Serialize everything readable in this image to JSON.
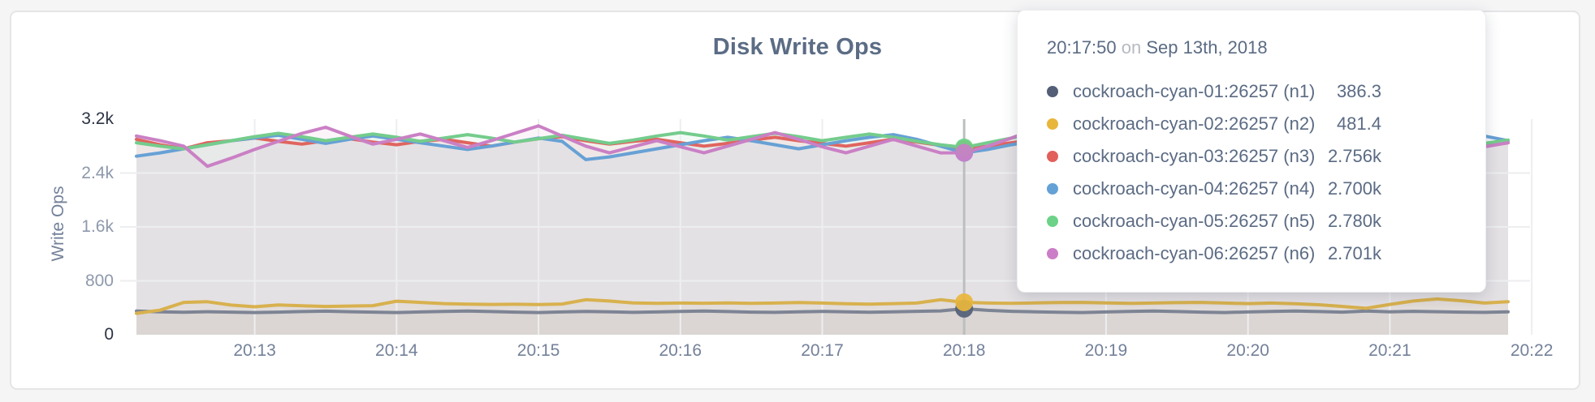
{
  "header": {
    "title": "Disk Write Ops"
  },
  "axes": {
    "y_label": "Write Ops"
  },
  "tooltip": {
    "time": "20:17:50",
    "on_word": "on",
    "date": "Sep 13th, 2018",
    "rows": [
      {
        "label": "cockroach-cyan-01:26257 (n1)",
        "value": "386.3",
        "color": "#535f76"
      },
      {
        "label": "cockroach-cyan-02:26257 (n2)",
        "value": "481.4",
        "color": "#e9b63c"
      },
      {
        "label": "cockroach-cyan-03:26257 (n3)",
        "value": "2.756k",
        "color": "#e2605c"
      },
      {
        "label": "cockroach-cyan-04:26257 (n4)",
        "value": "2.700k",
        "color": "#64a1d6"
      },
      {
        "label": "cockroach-cyan-05:26257 (n5)",
        "value": "2.780k",
        "color": "#6bd287"
      },
      {
        "label": "cockroach-cyan-06:26257 (n6)",
        "value": "2.701k",
        "color": "#cb7ec7"
      }
    ]
  },
  "chart_data": {
    "type": "line",
    "title": "Disk Write Ops",
    "ylabel": "Write Ops",
    "ylim": [
      0,
      3200
    ],
    "grid": true,
    "y_ticks": [
      {
        "value": 0,
        "label": "0",
        "strong": true
      },
      {
        "value": 800,
        "label": "800",
        "strong": false
      },
      {
        "value": 1600,
        "label": "1.6k",
        "strong": false
      },
      {
        "value": 2400,
        "label": "2.4k",
        "strong": false
      },
      {
        "value": 3200,
        "label": "3.2k",
        "strong": true
      }
    ],
    "x_ticks": [
      {
        "sec": 50,
        "label": "20:13"
      },
      {
        "sec": 110,
        "label": "20:14"
      },
      {
        "sec": 170,
        "label": "20:15"
      },
      {
        "sec": 230,
        "label": "20:16"
      },
      {
        "sec": 290,
        "label": "20:17"
      },
      {
        "sec": 350,
        "label": "20:18"
      },
      {
        "sec": 410,
        "label": "20:19"
      },
      {
        "sec": 470,
        "label": "20:20"
      },
      {
        "sec": 530,
        "label": "20:21"
      },
      {
        "sec": 590,
        "label": "20:22"
      }
    ],
    "hover": {
      "index": 35,
      "time": "20:17:50",
      "date": "Sep 13th, 2018"
    },
    "series": [
      {
        "id": "n1",
        "name": "cockroach-cyan-01:26257 (n1)",
        "line_color": "#7d8494",
        "dot_color": "#535f76",
        "values": [
          352,
          340,
          334,
          342,
          336,
          330,
          336,
          344,
          350,
          342,
          336,
          330,
          338,
          346,
          352,
          344,
          336,
          330,
          338,
          346,
          340,
          332,
          338,
          346,
          352,
          344,
          336,
          332,
          340,
          346,
          340,
          334,
          340,
          348,
          354,
          386,
          362,
          348,
          340,
          334,
          330,
          338,
          346,
          352,
          344,
          336,
          330,
          338,
          346,
          352,
          344,
          336,
          352,
          340,
          348,
          342,
          336,
          332,
          340
        ]
      },
      {
        "id": "n2",
        "name": "cockroach-cyan-02:26257 (n2)",
        "line_color": "#d8b14e",
        "dot_color": "#e9b63c",
        "values": [
          318,
          365,
          480,
          490,
          440,
          415,
          442,
          430,
          420,
          426,
          432,
          498,
          480,
          462,
          455,
          450,
          452,
          448,
          456,
          520,
          500,
          472,
          465,
          470,
          468,
          472,
          465,
          470,
          478,
          470,
          460,
          455,
          462,
          470,
          520,
          481,
          470,
          465,
          471,
          478,
          480,
          472,
          465,
          470,
          476,
          480,
          470,
          462,
          470,
          460,
          445,
          420,
          392,
          450,
          500,
          530,
          505,
          470,
          490
        ]
      },
      {
        "id": "n3",
        "name": "cockroach-cyan-03:26257 (n3)",
        "line_color": "#e0645f",
        "dot_color": "#e2605c",
        "values": [
          2900,
          2820,
          2760,
          2850,
          2880,
          2920,
          2870,
          2830,
          2880,
          2910,
          2860,
          2820,
          2870,
          2900,
          2850,
          2800,
          2860,
          2910,
          2940,
          2880,
          2830,
          2870,
          2900,
          2850,
          2800,
          2840,
          2890,
          2930,
          2880,
          2840,
          2800,
          2850,
          2900,
          2860,
          2810,
          2756,
          2800,
          2850,
          2900,
          2940,
          2890,
          2840,
          2800,
          2850,
          2890,
          2930,
          2880,
          2830,
          2870,
          2910,
          2860,
          2810,
          2850,
          2890,
          2930,
          2880,
          2840,
          2800,
          2850
        ]
      },
      {
        "id": "n4",
        "name": "cockroach-cyan-04:26257 (n4)",
        "line_color": "#67a1d5",
        "dot_color": "#64a1d6",
        "values": [
          2650,
          2700,
          2760,
          2820,
          2880,
          2920,
          2960,
          2900,
          2840,
          2900,
          2950,
          2900,
          2850,
          2800,
          2750,
          2800,
          2860,
          2920,
          2870,
          2600,
          2640,
          2700,
          2760,
          2820,
          2880,
          2930,
          2880,
          2820,
          2760,
          2820,
          2880,
          2930,
          2970,
          2900,
          2800,
          2700,
          2750,
          2820,
          2880,
          2940,
          2880,
          2820,
          2760,
          2820,
          2880,
          2940,
          2890,
          2830,
          2770,
          2830,
          2890,
          2950,
          2900,
          2840,
          2780,
          2840,
          2900,
          2950,
          2880
        ]
      },
      {
        "id": "n5",
        "name": "cockroach-cyan-05:26257 (n5)",
        "line_color": "#74cc8c",
        "dot_color": "#6bd287",
        "values": [
          2850,
          2800,
          2760,
          2820,
          2880,
          2940,
          2990,
          2940,
          2880,
          2930,
          2980,
          2930,
          2870,
          2920,
          2970,
          2920,
          2860,
          2910,
          2960,
          2900,
          2840,
          2890,
          2950,
          3000,
          2950,
          2890,
          2940,
          2990,
          2940,
          2880,
          2930,
          2980,
          2930,
          2870,
          2820,
          2780,
          2850,
          2920,
          2980,
          3030,
          2970,
          2910,
          2960,
          3010,
          2950,
          2890,
          2940,
          2990,
          2930,
          2870,
          2920,
          2970,
          2920,
          2860,
          2910,
          2960,
          2900,
          2840,
          2890
        ]
      },
      {
        "id": "n6",
        "name": "cockroach-cyan-06:26257 (n6)",
        "line_color": "#ca80c5",
        "dot_color": "#cb7ec7",
        "values": [
          2950,
          2880,
          2800,
          2500,
          2620,
          2750,
          2870,
          2990,
          3080,
          2950,
          2830,
          2900,
          2980,
          2880,
          2780,
          2880,
          2990,
          3100,
          2950,
          2800,
          2700,
          2790,
          2880,
          2790,
          2700,
          2800,
          2900,
          3000,
          2900,
          2790,
          2700,
          2800,
          2900,
          2800,
          2700,
          2701,
          2800,
          2920,
          3050,
          2900,
          2760,
          2850,
          2950,
          2850,
          2750,
          2850,
          2960,
          3060,
          2920,
          2790,
          2860,
          2950,
          2850,
          2750,
          2850,
          2950,
          2870,
          2790,
          2850
        ]
      }
    ],
    "style": {
      "fill_opacity": 0.08,
      "grid_color": "#edeef0",
      "hover_line_color": "#bcbec0"
    }
  }
}
